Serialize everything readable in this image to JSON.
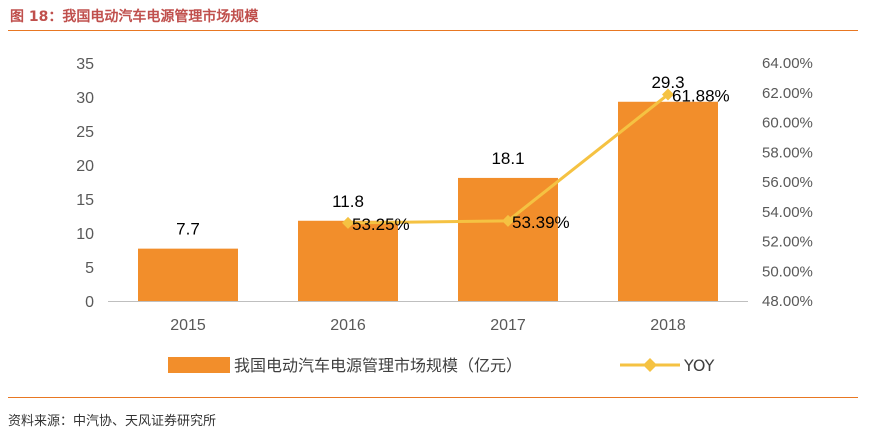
{
  "header": {
    "title": "图 18：我国电动汽车电源管理市场规模"
  },
  "footer": {
    "source": "资料来源：中汽协、天风证券研究所"
  },
  "colors": {
    "bar": "#f28e2b",
    "line": "#f5c242",
    "accent": "#e87722"
  },
  "chart_data": {
    "type": "bar",
    "categories": [
      "2015",
      "2016",
      "2017",
      "2018"
    ],
    "series": [
      {
        "name": "我国电动汽车电源管理市场规模（亿元）",
        "type": "bar",
        "axis": "left",
        "values": [
          7.7,
          11.8,
          18.1,
          29.3
        ],
        "labels": [
          "7.7",
          "11.8",
          "18.1",
          "29.3"
        ]
      },
      {
        "name": "YOY",
        "type": "line",
        "axis": "right",
        "values": [
          null,
          53.25,
          53.39,
          61.88
        ],
        "labels": [
          "",
          "53.25%",
          "53.39%",
          "61.88%"
        ]
      }
    ],
    "y_left": {
      "ylim": [
        0,
        35
      ],
      "ticks": [
        "0",
        "5",
        "10",
        "15",
        "20",
        "25",
        "30",
        "35"
      ]
    },
    "y_right": {
      "ylim": [
        48,
        64
      ],
      "ticks": [
        "48.00%",
        "50.00%",
        "52.00%",
        "54.00%",
        "56.00%",
        "58.00%",
        "60.00%",
        "62.00%",
        "64.00%"
      ]
    },
    "legend": {
      "position": "bottom"
    }
  }
}
